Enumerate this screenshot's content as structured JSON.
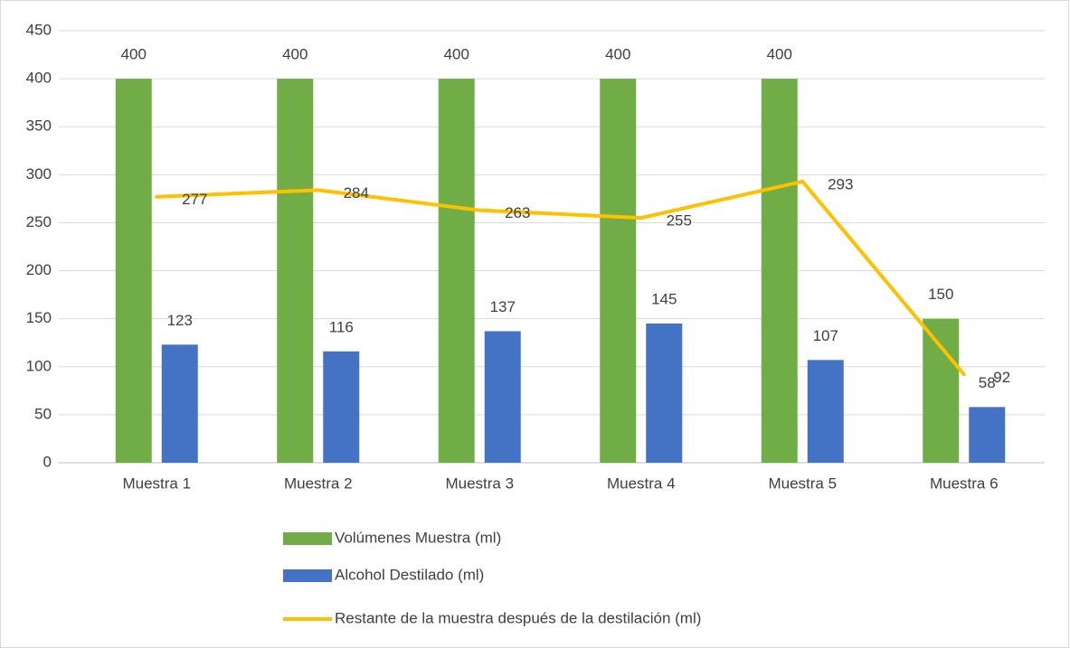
{
  "chart_data": {
    "type": "bar",
    "categories": [
      "Muestra 1",
      "Muestra 2",
      "Muestra 3",
      "Muestra 4",
      "Muestra 5",
      "Muestra 6"
    ],
    "series": [
      {
        "name": "Volúmenes Muestra (ml)",
        "color": "#70ad47",
        "values": [
          400,
          400,
          400,
          400,
          400,
          150
        ]
      },
      {
        "name": "Alcohol Destilado (ml)",
        "color": "#4472c4",
        "values": [
          123,
          116,
          137,
          145,
          107,
          58
        ]
      },
      {
        "name": "Restante de la muestra después de la destilación (ml)",
        "color": "#ffc000",
        "type": "line",
        "values": [
          277,
          284,
          263,
          255,
          293,
          92
        ]
      }
    ],
    "ylim": [
      0,
      450
    ],
    "yticks": [
      0,
      50,
      100,
      150,
      200,
      250,
      300,
      350,
      400,
      450
    ],
    "grid": true,
    "legend": "bottom"
  }
}
